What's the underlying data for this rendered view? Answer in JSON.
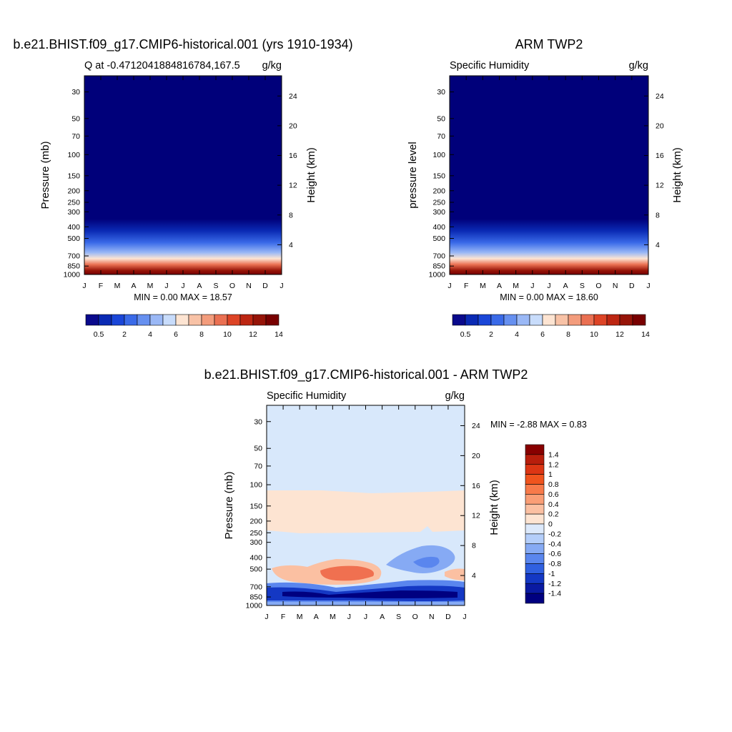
{
  "chart_data": [
    {
      "type": "heatmap",
      "title": "b.e21.BHIST.f09_g17.CMIP6-historical.001 (yrs 1910-1934)",
      "subtitle_left": "Q at -0.4712041884816784,167.5",
      "subtitle_right": "g/kg",
      "ylabel": "Pressure (mb)",
      "ylabel_right": "Height (km)",
      "x_ticks": [
        "J",
        "F",
        "M",
        "A",
        "M",
        "J",
        "J",
        "A",
        "S",
        "O",
        "N",
        "D",
        "J"
      ],
      "y_ticks": [
        30,
        50,
        70,
        100,
        150,
        200,
        250,
        300,
        400,
        500,
        700,
        850,
        1000
      ],
      "y_ticks_right": [
        24,
        20,
        16,
        12,
        8,
        4
      ],
      "stats": "MIN =   0.00 MAX =  18.57",
      "colorbar_labels": [
        "0.5",
        "2",
        "4",
        "6",
        "8",
        "10",
        "12",
        "14"
      ],
      "colorbar_colors": [
        "#0a0a8c",
        "#0a2ab4",
        "#1a46d8",
        "#3a6ae8",
        "#6690f0",
        "#9ab8f6",
        "#c8dcfb",
        "#fde4d2",
        "#f8c2a6",
        "#f39c7c",
        "#ea7052",
        "#dd4426",
        "#bd2612",
        "#961408",
        "#780000"
      ]
    },
    {
      "type": "heatmap",
      "title": "ARM TWP2",
      "subtitle_left": "Specific Humidity",
      "subtitle_right": "g/kg",
      "ylabel": "pressure level",
      "ylabel_right": "Height (km)",
      "x_ticks": [
        "J",
        "F",
        "M",
        "A",
        "M",
        "J",
        "J",
        "A",
        "S",
        "O",
        "N",
        "D",
        "J"
      ],
      "y_ticks": [
        30,
        50,
        70,
        100,
        150,
        200,
        250,
        300,
        400,
        500,
        700,
        850,
        1000
      ],
      "y_ticks_right": [
        24,
        20,
        16,
        12,
        8,
        4
      ],
      "stats": "MIN =   0.00 MAX =  18.60",
      "colorbar_labels": [
        "0.5",
        "2",
        "4",
        "6",
        "8",
        "10",
        "12",
        "14"
      ]
    },
    {
      "type": "heatmap",
      "title": "b.e21.BHIST.f09_g17.CMIP6-historical.001 - ARM TWP2",
      "subtitle_left": "Specific Humidity",
      "subtitle_right": "g/kg",
      "ylabel": "Pressure (mb)",
      "ylabel_right": "Height (km)",
      "x_ticks": [
        "J",
        "F",
        "M",
        "A",
        "M",
        "J",
        "J",
        "A",
        "S",
        "O",
        "N",
        "D",
        "J"
      ],
      "y_ticks": [
        30,
        50,
        70,
        100,
        150,
        200,
        250,
        300,
        400,
        500,
        700,
        850,
        1000
      ],
      "y_ticks_right": [
        24,
        20,
        16,
        12,
        8,
        4
      ],
      "stats": "MIN =  -2.88 MAX =   0.83",
      "colorbar_labels": [
        "1.4",
        "1.2",
        "1",
        "0.8",
        "0.6",
        "0.4",
        "0.2",
        "0",
        "-0.2",
        "-0.4",
        "-0.6",
        "-0.8",
        "-1",
        "-1.2",
        "-1.4"
      ],
      "colorbar_colors": [
        "#880000",
        "#b81e0c",
        "#dc3614",
        "#f0541e",
        "#f87a4a",
        "#fa9e76",
        "#fbc0a2",
        "#fde4d2",
        "#dce9fb",
        "#b4cefa",
        "#86aaf4",
        "#5a86ee",
        "#3060e0",
        "#1438c4",
        "#0a1aa2",
        "#000080"
      ]
    }
  ]
}
